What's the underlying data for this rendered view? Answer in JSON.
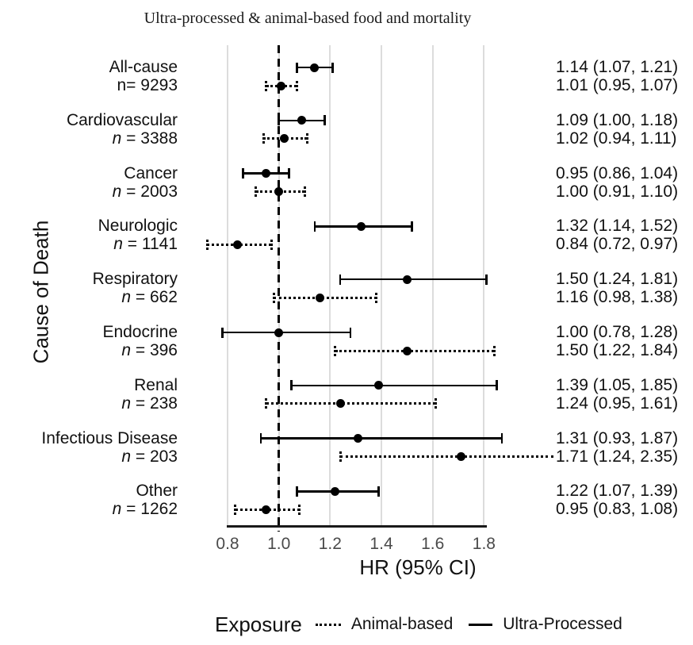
{
  "title": "Ultra-processed & animal-based food and mortality",
  "y_axis_title": "Cause of Death",
  "x_axis_title": "HR (95% CI)",
  "legend": {
    "title": "Exposure",
    "items": [
      {
        "label": "Animal-based",
        "line_style": "dotted"
      },
      {
        "label": "Ultra-Processed",
        "line_style": "solid"
      }
    ]
  },
  "colors": {
    "line": "#000000",
    "gridline": "#dcdcdc",
    "tick_label": "#4a4a4a"
  },
  "chart_data": {
    "type": "forest",
    "title": "Ultra-processed & animal-based food and mortality",
    "xlabel": "HR (95% CI)",
    "ylabel": "Cause of Death",
    "xlim": [
      0.8,
      1.87
    ],
    "ref_line": 1.0,
    "grid": "vertical-major-only",
    "legend_position": "bottom",
    "x_ticks": [
      {
        "hr": 0.8,
        "label": "0.8"
      },
      {
        "hr": 1.0,
        "label": "1.0"
      },
      {
        "hr": 1.2,
        "label": "1.2"
      },
      {
        "hr": 1.4,
        "label": "1.4"
      },
      {
        "hr": 1.6,
        "label": "1.6"
      },
      {
        "hr": 1.8,
        "label": "1.8"
      }
    ],
    "series_names": [
      "Ultra-Processed",
      "Animal-based"
    ],
    "groups": [
      {
        "cause": "All-cause",
        "n": 9293,
        "n_label": "n= 9293",
        "n_italic": false,
        "ultra_processed": {
          "est": 1.14,
          "lo": 1.07,
          "hi": 1.21,
          "text": "1.14 (1.07, 1.21)"
        },
        "animal_based": {
          "est": 1.01,
          "lo": 0.95,
          "hi": 1.07,
          "text": "1.01 (0.95, 1.07)"
        }
      },
      {
        "cause": "Cardiovascular",
        "n": 3388,
        "n_label": "n = 3388",
        "n_italic": true,
        "ultra_processed": {
          "est": 1.09,
          "lo": 1.0,
          "hi": 1.18,
          "text": "1.09 (1.00, 1.18)"
        },
        "animal_based": {
          "est": 1.02,
          "lo": 0.94,
          "hi": 1.11,
          "text": "1.02 (0.94, 1.11)"
        }
      },
      {
        "cause": "Cancer",
        "n": 2003,
        "n_label": "n = 2003",
        "n_italic": true,
        "ultra_processed": {
          "est": 0.95,
          "lo": 0.86,
          "hi": 1.04,
          "text": "0.95 (0.86, 1.04)"
        },
        "animal_based": {
          "est": 1.0,
          "lo": 0.91,
          "hi": 1.1,
          "text": "1.00 (0.91, 1.10)"
        }
      },
      {
        "cause": "Neurologic",
        "n": 1141,
        "n_label": "n = 1141",
        "n_italic": true,
        "ultra_processed": {
          "est": 1.32,
          "lo": 1.14,
          "hi": 1.52,
          "text": "1.32 (1.14, 1.52)"
        },
        "animal_based": {
          "est": 0.84,
          "lo": 0.72,
          "hi": 0.97,
          "text": "0.84 (0.72, 0.97)"
        }
      },
      {
        "cause": "Respiratory",
        "n": 662,
        "n_label": "n = 662",
        "n_italic": true,
        "ultra_processed": {
          "est": 1.5,
          "lo": 1.24,
          "hi": 1.81,
          "text": "1.50 (1.24, 1.81)"
        },
        "animal_based": {
          "est": 1.16,
          "lo": 0.98,
          "hi": 1.38,
          "text": "1.16 (0.98, 1.38)"
        }
      },
      {
        "cause": "Endocrine",
        "n": 396,
        "n_label": "n = 396",
        "n_italic": true,
        "ultra_processed": {
          "est": 1.0,
          "lo": 0.78,
          "hi": 1.28,
          "text": "1.00 (0.78, 1.28)"
        },
        "animal_based": {
          "est": 1.5,
          "lo": 1.22,
          "hi": 1.84,
          "text": "1.50 (1.22, 1.84)"
        }
      },
      {
        "cause": "Renal",
        "n": 238,
        "n_label": "n = 238",
        "n_italic": true,
        "ultra_processed": {
          "est": 1.39,
          "lo": 1.05,
          "hi": 1.85,
          "text": "1.39 (1.05, 1.85)"
        },
        "animal_based": {
          "est": 1.24,
          "lo": 0.95,
          "hi": 1.61,
          "text": "1.24 (0.95, 1.61)"
        }
      },
      {
        "cause": "Infectious Disease",
        "n": 203,
        "n_label": "n = 203",
        "n_italic": true,
        "ultra_processed": {
          "est": 1.31,
          "lo": 0.93,
          "hi": 1.87,
          "text": "1.31 (0.93, 1.87)"
        },
        "animal_based": {
          "est": 1.71,
          "lo": 1.24,
          "hi": 2.35,
          "text": "1.71 (1.24, 2.35)",
          "ci_extends_to_label": true
        }
      },
      {
        "cause": "Other",
        "n": 1262,
        "n_label": "n = 1262",
        "n_italic": true,
        "ultra_processed": {
          "est": 1.22,
          "lo": 1.07,
          "hi": 1.39,
          "text": "1.22 (1.07, 1.39)"
        },
        "animal_based": {
          "est": 0.95,
          "lo": 0.83,
          "hi": 1.08,
          "text": "0.95 (0.83, 1.08)"
        }
      }
    ]
  }
}
